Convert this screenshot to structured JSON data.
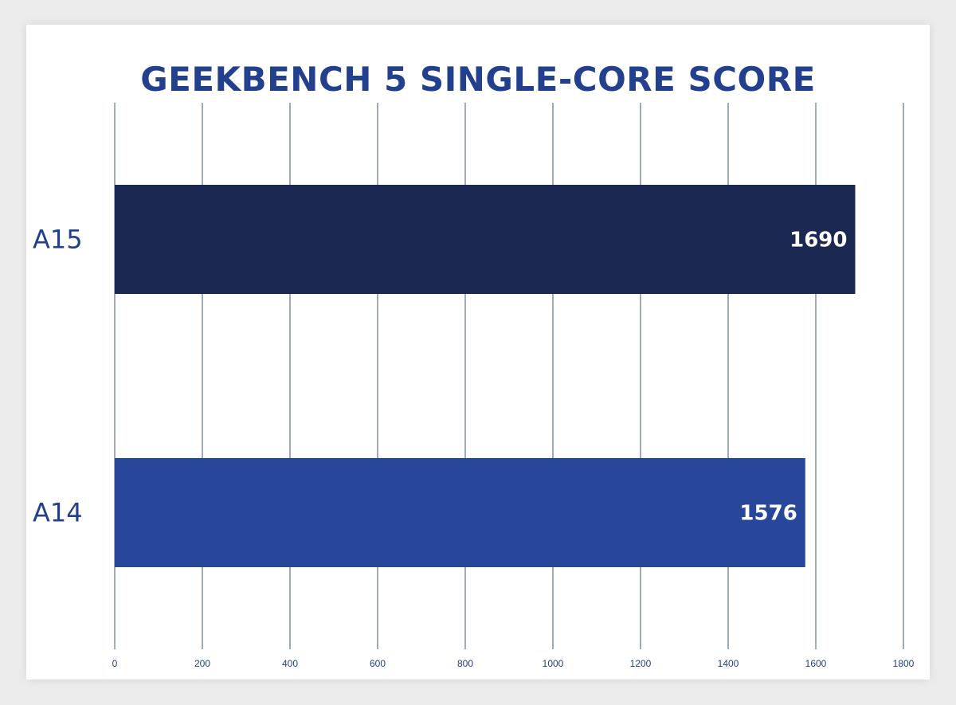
{
  "chart_data": {
    "type": "bar",
    "orientation": "horizontal",
    "title": "GEEKBENCH 5 SINGLE-CORE SCORE",
    "xlabel": "",
    "ylabel": "",
    "categories": [
      "A15",
      "A14"
    ],
    "values": [
      1690,
      1576
    ],
    "data_labels": [
      "1690",
      "1576"
    ],
    "xlim": [
      0,
      1800
    ],
    "x_ticks": [
      "0",
      "200",
      "400",
      "600",
      "800",
      "1000",
      "1200",
      "1400",
      "1600",
      "1800"
    ],
    "grid": "vertical",
    "legend": "none",
    "colors": {
      "bars": [
        "#1b2852",
        "#28479b"
      ],
      "title": "#23408e",
      "grid": "#7d8fa4",
      "category_label": "#23408e",
      "tick_label": "#23408e",
      "data_label": "#ffffff"
    }
  }
}
